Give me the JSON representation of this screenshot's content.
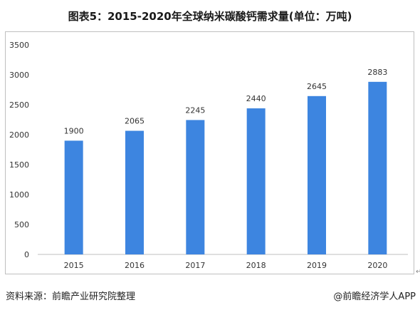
{
  "title": "图表5：2015-2020年全球纳米碳酸钙需求量(单位：万吨)",
  "source": "资料来源：前瞻产业研究院整理",
  "brand": "@前瞻经济学人APP",
  "return_mark": "↵",
  "colors": {
    "bar": "#3d85e0",
    "axis": "#bfbfbf",
    "text": "#333333"
  },
  "chart_data": {
    "type": "bar",
    "title": "图表5：2015-2020年全球纳米碳酸钙需求量(单位：万吨)",
    "xlabel": "",
    "ylabel": "",
    "categories": [
      "2015",
      "2016",
      "2017",
      "2018",
      "2019",
      "2020"
    ],
    "values": [
      1900,
      2065,
      2245,
      2440,
      2645,
      2883
    ],
    "value_labels": [
      "1900",
      "2065",
      "2245",
      "2440",
      "2645",
      "2883"
    ],
    "ylim": [
      0,
      3500
    ],
    "yticks": [
      0,
      500,
      1000,
      1500,
      2000,
      2500,
      3000,
      3500
    ],
    "ytick_labels": [
      "0",
      "500",
      "1000",
      "1500",
      "2000",
      "2500",
      "3000",
      "3500"
    ],
    "grid": false,
    "legend": "none"
  }
}
